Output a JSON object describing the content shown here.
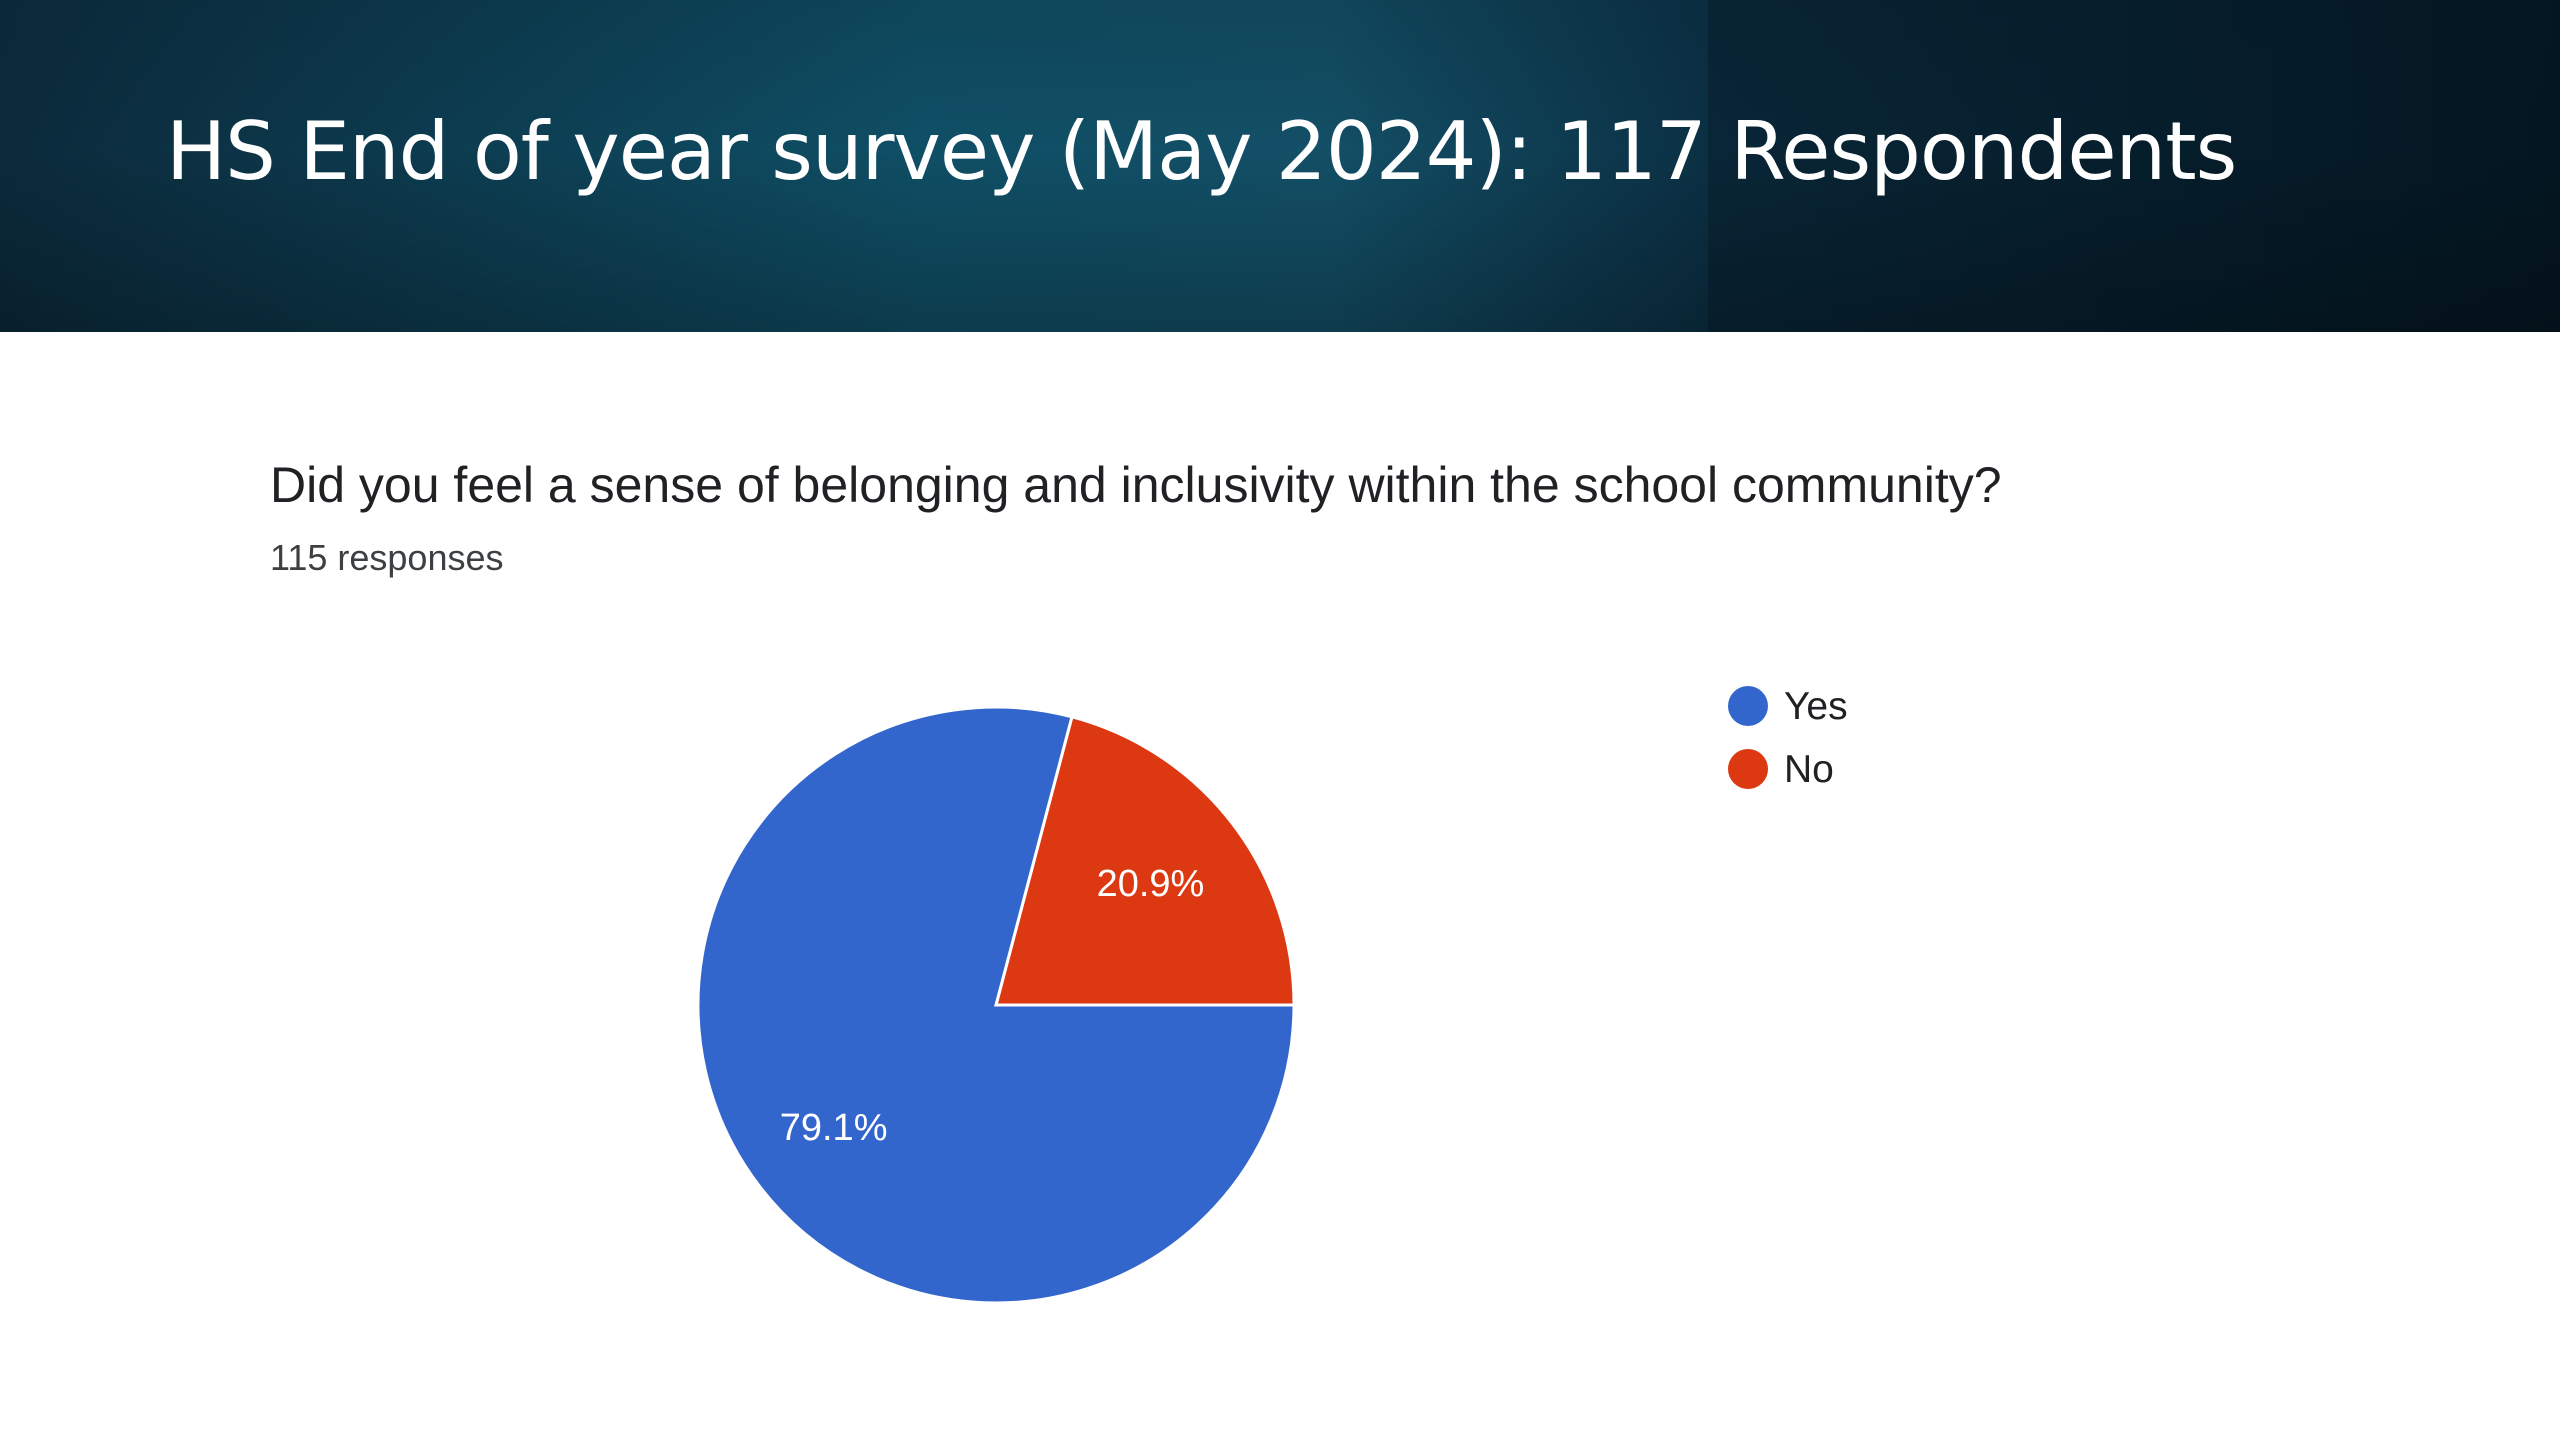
{
  "header": {
    "title": "HS End of year survey (May 2024):  117 Respondents"
  },
  "question": {
    "title": "Did you feel a sense of belonging and inclusivity within the school community?",
    "responses": "115 responses"
  },
  "legend": {
    "items": [
      {
        "label": "Yes",
        "color": "#3366cc"
      },
      {
        "label": "No",
        "color": "#dc3912"
      }
    ]
  },
  "chart_data": {
    "type": "pie",
    "title": "Did you feel a sense of belonging and inclusivity within the school community?",
    "subtitle": "115 responses",
    "categories": [
      "Yes",
      "No"
    ],
    "values": [
      79.1,
      20.9
    ],
    "labels": [
      "79.1%",
      "20.9%"
    ],
    "colors": [
      "#3366cc",
      "#dc3912"
    ],
    "legend_position": "right"
  }
}
